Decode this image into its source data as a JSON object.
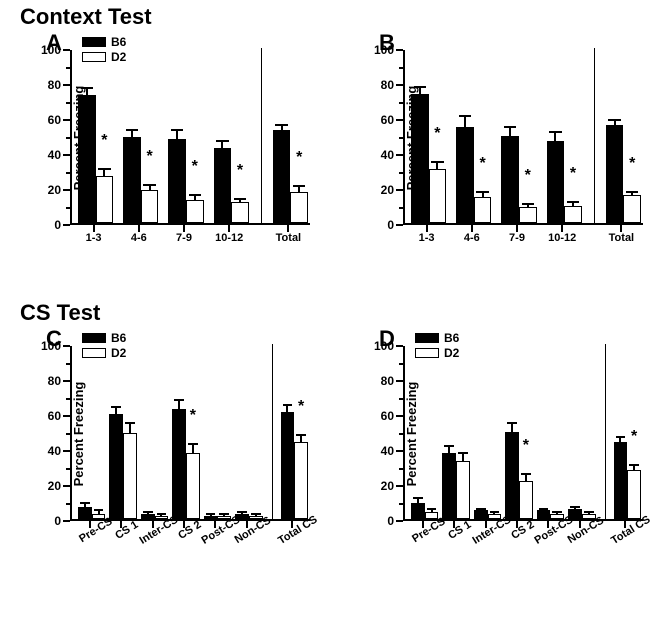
{
  "colors": {
    "b6": "#000000",
    "d2": "#ffffff",
    "border": "#000000",
    "text": "#000000",
    "bg": "#ffffff"
  },
  "sections": {
    "context": "Context Test",
    "cs": "CS Test"
  },
  "yaxis": {
    "label": "Percent Freezing",
    "ymin": 0,
    "ymax": 100,
    "major_ticks": [
      0,
      20,
      40,
      60,
      80,
      100
    ],
    "minor_step": 10
  },
  "legend": {
    "series1": "B6",
    "series2": "D2"
  },
  "panelA": {
    "letter": "A",
    "type": "bar",
    "show_legend": true,
    "categories": [
      "1-3",
      "4-6",
      "7-9",
      "10-12",
      "Total"
    ],
    "rotated_labels": false,
    "separator_after": 4,
    "b6": {
      "values": [
        73,
        49,
        48,
        43,
        53
      ],
      "err": [
        4,
        4,
        5,
        4,
        3
      ]
    },
    "d2": {
      "values": [
        27,
        19,
        13,
        12,
        18
      ],
      "err": [
        4,
        3,
        3,
        2,
        3
      ]
    },
    "sig": [
      true,
      true,
      true,
      true,
      true
    ]
  },
  "panelB": {
    "letter": "B",
    "type": "bar",
    "show_legend": false,
    "categories": [
      "1-3",
      "4-6",
      "7-9",
      "10-12",
      "Total"
    ],
    "rotated_labels": false,
    "separator_after": 4,
    "b6": {
      "values": [
        74,
        55,
        50,
        47,
        56
      ],
      "err": [
        4,
        6,
        5,
        5,
        3
      ]
    },
    "d2": {
      "values": [
        31,
        15,
        9,
        10,
        16
      ],
      "err": [
        4,
        3,
        2,
        2,
        2
      ]
    },
    "sig": [
      true,
      true,
      true,
      true,
      true
    ]
  },
  "panelC": {
    "letter": "C",
    "type": "bar",
    "show_legend": true,
    "categories": [
      "Pre-CS",
      "CS 1",
      "Inter-CS",
      "CS 2",
      "Post-CS",
      "Non-CS",
      "Total CS"
    ],
    "rotated_labels": true,
    "separator_after": 6,
    "b6": {
      "values": [
        7,
        60,
        3,
        63,
        2,
        3,
        61
      ],
      "err": [
        2,
        4,
        1,
        5,
        1,
        1,
        4
      ]
    },
    "d2": {
      "values": [
        3,
        49,
        2,
        38,
        2,
        2,
        44
      ],
      "err": [
        2,
        6,
        1,
        5,
        1,
        1,
        4
      ]
    },
    "sig": [
      false,
      false,
      false,
      true,
      false,
      false,
      true
    ]
  },
  "panelD": {
    "letter": "D",
    "type": "bar",
    "show_legend": true,
    "categories": [
      "Pre-CS",
      "CS 1",
      "Inter-CS",
      "CS 2",
      "Post-CS",
      "Non-CS",
      "Total CS"
    ],
    "rotated_labels": true,
    "separator_after": 6,
    "b6": {
      "values": [
        9,
        38,
        5,
        50,
        5,
        6,
        44
      ],
      "err": [
        3,
        4,
        1,
        5,
        1,
        1,
        3
      ]
    },
    "d2": {
      "values": [
        4,
        33,
        3,
        22,
        3,
        3,
        28
      ],
      "err": [
        2,
        5,
        1,
        4,
        1,
        1,
        3
      ]
    },
    "sig": [
      false,
      false,
      false,
      true,
      false,
      false,
      true
    ]
  }
}
